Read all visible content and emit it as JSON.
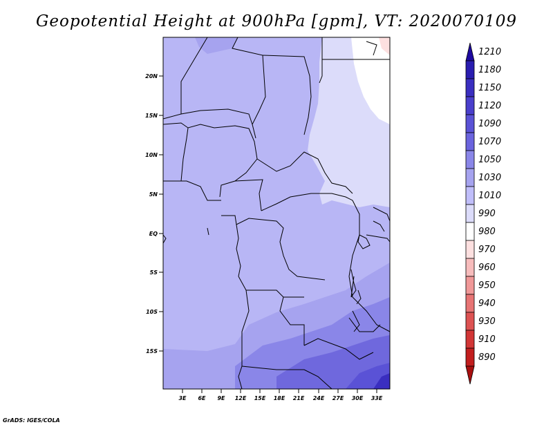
{
  "title": "Geopotential Height at 900hPa [gpm], VT: 2020070109",
  "credit": "GrADS: IGES/COLA",
  "map": {
    "lat_labels": [
      "20N",
      "15N",
      "10N",
      "5N",
      "EQ",
      "5S",
      "10S",
      "15S"
    ],
    "lon_labels": [
      "3E",
      "6E",
      "9E",
      "12E",
      "15E",
      "18E",
      "21E",
      "24E",
      "27E",
      "30E",
      "33E"
    ]
  },
  "colorbar": {
    "labels": [
      "1210",
      "1180",
      "1150",
      "1120",
      "1090",
      "1070",
      "1050",
      "1030",
      "1010",
      "990",
      "980",
      "970",
      "960",
      "950",
      "940",
      "930",
      "910",
      "890"
    ],
    "colors": [
      "#1e0aa0",
      "#2a1db0",
      "#3a2ec0",
      "#4a3fcc",
      "#5a52d6",
      "#6b64de",
      "#8a86e8",
      "#a6a3ef",
      "#c0befa",
      "#dcdcfa",
      "#ffffff",
      "#fde0e0",
      "#f7bcbc",
      "#f09898",
      "#e77474",
      "#dd5252",
      "#d23636",
      "#c21e1e",
      "#a80f0f"
    ]
  },
  "colors": {
    "base_fill": "#b8b6f5",
    "low_zone": "#dcdcfa",
    "high_zone": "#fdf4f4",
    "deep_south": "#8a86e8",
    "deeper_south": "#6f68dd"
  }
}
